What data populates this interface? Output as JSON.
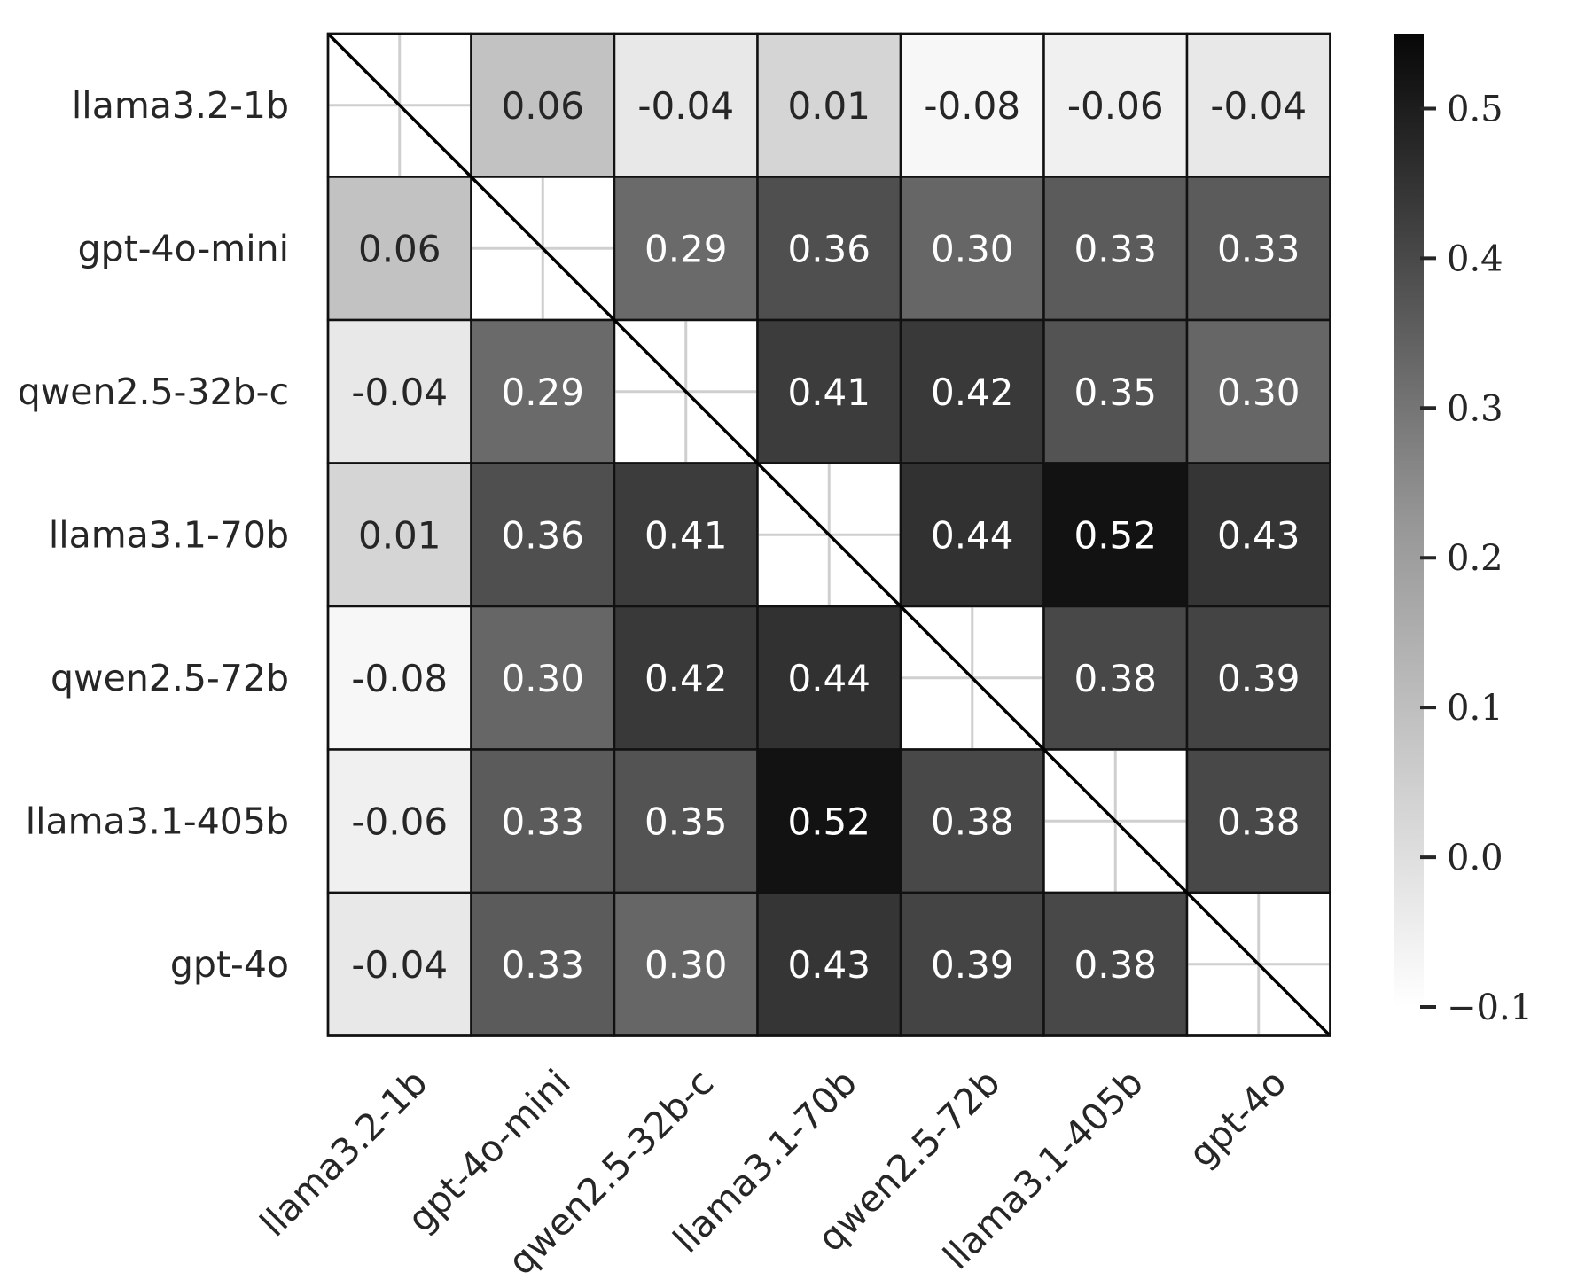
{
  "chart_data": {
    "type": "heatmap",
    "title": "",
    "xlabel": "",
    "ylabel": "",
    "row_labels": [
      "llama3.2-1b",
      "gpt-4o-mini",
      "qwen2.5-32b-c",
      "llama3.1-70b",
      "qwen2.5-72b",
      "llama3.1-405b",
      "gpt-4o"
    ],
    "col_labels": [
      "llama3.2-1b",
      "gpt-4o-mini",
      "qwen2.5-32b-c",
      "llama3.1-70b",
      "qwen2.5-72b",
      "llama3.1-405b",
      "gpt-4o"
    ],
    "values": [
      [
        null,
        0.06,
        -0.04,
        0.01,
        -0.08,
        -0.06,
        -0.04
      ],
      [
        0.06,
        null,
        0.29,
        0.36,
        0.3,
        0.33,
        0.33
      ],
      [
        -0.04,
        0.29,
        null,
        0.41,
        0.42,
        0.35,
        0.3
      ],
      [
        0.01,
        0.36,
        0.41,
        null,
        0.44,
        0.52,
        0.43
      ],
      [
        -0.08,
        0.3,
        0.42,
        0.44,
        null,
        0.38,
        0.39
      ],
      [
        -0.06,
        0.33,
        0.35,
        0.52,
        0.38,
        null,
        0.38
      ],
      [
        -0.04,
        0.33,
        0.3,
        0.43,
        0.39,
        0.38,
        null
      ]
    ],
    "value_labels": [
      [
        "",
        "0.06",
        "-0.04",
        "0.01",
        "-0.08",
        "-0.06",
        "-0.04"
      ],
      [
        "0.06",
        "",
        "0.29",
        "0.36",
        "0.30",
        "0.33",
        "0.33"
      ],
      [
        "-0.04",
        "0.29",
        "",
        "0.41",
        "0.42",
        "0.35",
        "0.30"
      ],
      [
        "0.01",
        "0.36",
        "0.41",
        "",
        "0.44",
        "0.52",
        "0.43"
      ],
      [
        "-0.08",
        "0.30",
        "0.42",
        "0.44",
        "",
        "0.38",
        "0.39"
      ],
      [
        "-0.06",
        "0.33",
        "0.35",
        "0.52",
        "0.38",
        "",
        "0.38"
      ],
      [
        "-0.04",
        "0.33",
        "0.30",
        "0.43",
        "0.39",
        "0.38",
        ""
      ]
    ],
    "diagonal": "empty-with-diagonal-line",
    "colormap": "Greys",
    "vmin": -0.1,
    "vmax": 0.55,
    "colorbar": {
      "ticks": [
        -0.1,
        0.0,
        0.1,
        0.2,
        0.3,
        0.4,
        0.5
      ],
      "tick_labels": [
        "−0.1",
        "0.0",
        "0.1",
        "0.2",
        "0.3",
        "0.4",
        "0.5"
      ],
      "placement": "right"
    },
    "grid": true
  }
}
